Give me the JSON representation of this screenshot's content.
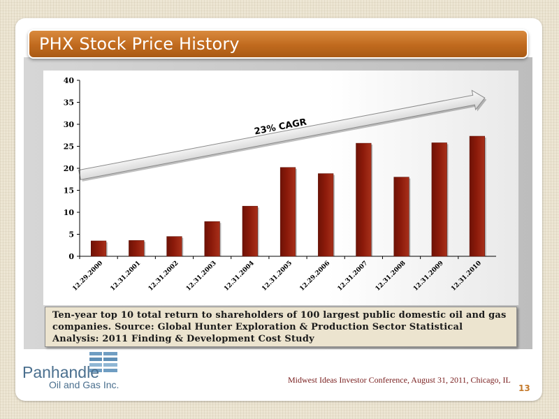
{
  "slide": {
    "title": "PHX Stock Price History",
    "caption": "Ten-year top 10 total return to shareholders of 100 largest public domestic oil and gas companies.  Source:  Global Hunter Exploration & Production Sector Statistical Analysis: 2011 Finding & Development Cost Study",
    "footer": "Midwest Ideas Investor Conference, August 31, 2011, Chicago, IL",
    "page_number": "13",
    "logo": {
      "name": "Panhandle",
      "sub": "Oil and Gas Inc."
    }
  },
  "colors": {
    "title_bar": "#c06a1e",
    "bar_fill": "#8b1a0a",
    "footer_text": "#7a2020",
    "page_number": "#c47a2c",
    "logo": "#4a6f8e"
  },
  "chart_data": {
    "type": "bar",
    "title": "",
    "xlabel": "",
    "ylabel": "",
    "ylim": [
      0,
      40
    ],
    "yticks": [
      0,
      5,
      10,
      15,
      20,
      25,
      30,
      35,
      40
    ],
    "grid": false,
    "categories": [
      "12.29.2000",
      "12.31.2001",
      "12.31.2002",
      "12.31.2003",
      "12.31.2004",
      "12.31.2005",
      "12.29.2006",
      "12.31.2007",
      "12.31.2008",
      "12.31.2009",
      "12.31.2010"
    ],
    "values": [
      3.5,
      3.6,
      4.5,
      7.9,
      11.4,
      20.2,
      18.8,
      25.7,
      18.0,
      25.8,
      27.3
    ],
    "annotations": [
      {
        "text": "23% CAGR",
        "type": "arrow",
        "from": {
          "x": "12.29.2000",
          "y": 18.5
        },
        "to": {
          "x": "12.31.2010",
          "y": 36.0
        }
      }
    ]
  }
}
